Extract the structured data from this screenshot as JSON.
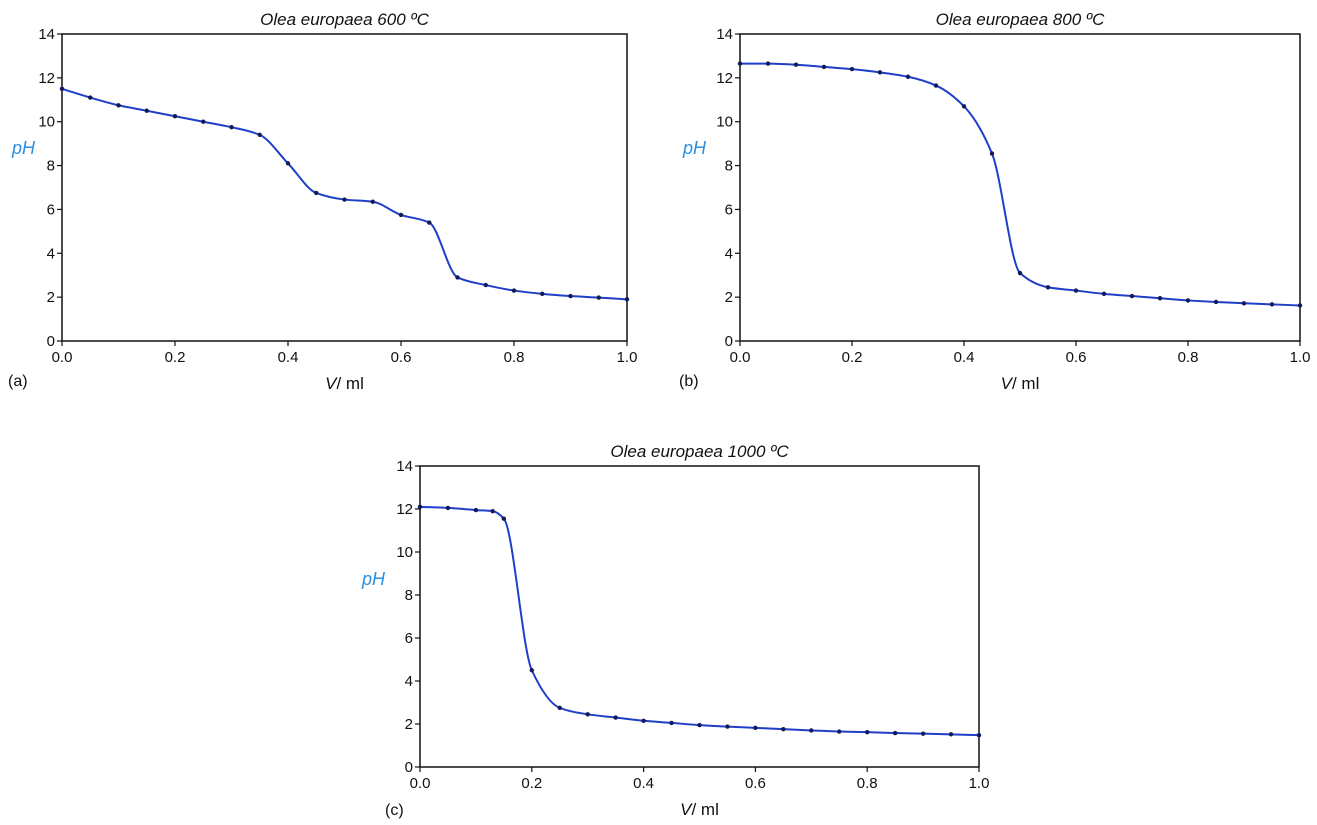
{
  "colors": {
    "curve": "#1f3fc8",
    "marker": "#141a55",
    "ylabel": "#2a8fe0",
    "axis": "#111111"
  },
  "chart_data": [
    {
      "type": "line",
      "panel": "(a)",
      "title": "Olea europaea 600 ºC",
      "xlabel_var": "V",
      "xlabel_unit": "/ ml",
      "ylabel": "pH",
      "xlim": [
        0,
        1
      ],
      "ylim": [
        0,
        14
      ],
      "xticks": [
        "0.0",
        "0.2",
        "0.4",
        "0.6",
        "0.8",
        "1.0"
      ],
      "yticks": [
        "0",
        "2",
        "4",
        "6",
        "8",
        "10",
        "12",
        "14"
      ],
      "grid": false,
      "x": [
        0.0,
        0.05,
        0.1,
        0.15,
        0.2,
        0.25,
        0.3,
        0.35,
        0.4,
        0.45,
        0.5,
        0.55,
        0.6,
        0.65,
        0.7,
        0.75,
        0.8,
        0.85,
        0.9,
        0.95,
        1.0
      ],
      "y": [
        11.5,
        11.1,
        10.75,
        10.5,
        10.25,
        10.0,
        9.75,
        9.4,
        8.1,
        6.75,
        6.45,
        6.35,
        5.75,
        5.4,
        2.9,
        2.55,
        2.3,
        2.15,
        2.05,
        1.98,
        1.9
      ]
    },
    {
      "type": "line",
      "panel": "(b)",
      "title": "Olea europaea 800 ºC",
      "xlabel_var": "V",
      "xlabel_unit": "/ ml",
      "ylabel": "pH",
      "xlim": [
        0,
        1
      ],
      "ylim": [
        0,
        14
      ],
      "xticks": [
        "0.0",
        "0.2",
        "0.4",
        "0.6",
        "0.8",
        "1.0"
      ],
      "yticks": [
        "0",
        "2",
        "4",
        "6",
        "8",
        "10",
        "12",
        "14"
      ],
      "grid": false,
      "x": [
        0.0,
        0.05,
        0.1,
        0.15,
        0.2,
        0.25,
        0.3,
        0.35,
        0.4,
        0.45,
        0.5,
        0.55,
        0.6,
        0.65,
        0.7,
        0.75,
        0.8,
        0.85,
        0.9,
        0.95,
        1.0
      ],
      "y": [
        12.65,
        12.65,
        12.6,
        12.5,
        12.4,
        12.25,
        12.05,
        11.65,
        10.7,
        8.55,
        3.1,
        2.45,
        2.3,
        2.15,
        2.05,
        1.95,
        1.85,
        1.78,
        1.72,
        1.67,
        1.62
      ]
    },
    {
      "type": "line",
      "panel": "(c)",
      "title": "Olea europaea 1000 ºC",
      "xlabel_var": "V",
      "xlabel_unit": "/ ml",
      "ylabel": "pH",
      "xlim": [
        0,
        1
      ],
      "ylim": [
        0,
        14
      ],
      "xticks": [
        "0.0",
        "0.2",
        "0.4",
        "0.6",
        "0.8",
        "1.0"
      ],
      "yticks": [
        "0",
        "2",
        "4",
        "6",
        "8",
        "10",
        "12",
        "14"
      ],
      "grid": false,
      "x": [
        0.0,
        0.05,
        0.1,
        0.13,
        0.15,
        0.2,
        0.25,
        0.3,
        0.35,
        0.4,
        0.45,
        0.5,
        0.55,
        0.6,
        0.65,
        0.7,
        0.75,
        0.8,
        0.85,
        0.9,
        0.95,
        1.0
      ],
      "y": [
        12.1,
        12.05,
        11.95,
        11.9,
        11.55,
        4.5,
        2.75,
        2.45,
        2.3,
        2.15,
        2.05,
        1.95,
        1.88,
        1.82,
        1.76,
        1.7,
        1.65,
        1.62,
        1.58,
        1.55,
        1.52,
        1.48
      ]
    }
  ]
}
